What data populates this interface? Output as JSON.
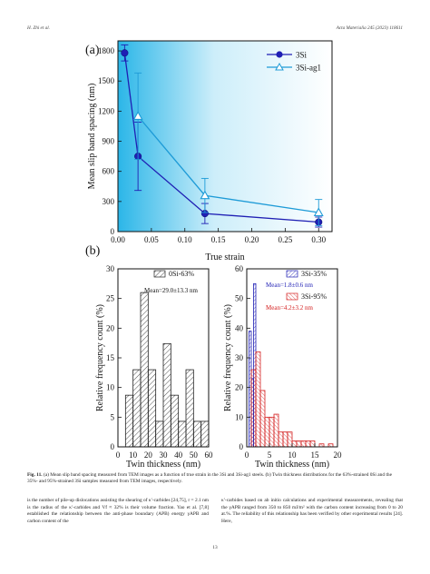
{
  "header": {
    "left": "H. Zhi et al.",
    "right": "Acta Materialia 245 (2023) 118611"
  },
  "panel_a": {
    "label": "(a)"
  },
  "panel_b": {
    "label": "(b)"
  },
  "chart_data": [
    {
      "type": "line",
      "xlabel": "True strain",
      "ylabel": "Mean slip band spacing (nm)",
      "xlim": [
        0,
        0.32
      ],
      "ylim": [
        0,
        1900
      ],
      "xticks": [
        "0.00",
        "0.05",
        "0.10",
        "0.15",
        "0.20",
        "0.25",
        "0.30"
      ],
      "yticks": [
        "0",
        "300",
        "600",
        "900",
        "1200",
        "1500",
        "1800"
      ],
      "legend_position": "top-right",
      "series": [
        {
          "name": "3Si",
          "color": "#1f1fb4",
          "marker": "circle-filled",
          "x": [
            0.01,
            0.03,
            0.13,
            0.3
          ],
          "y": [
            1780,
            750,
            180,
            95
          ],
          "err": [
            80,
            340,
            100,
            50
          ]
        },
        {
          "name": "3Si-ag1",
          "color": "#1e9bd7",
          "marker": "triangle-open",
          "x": [
            0.03,
            0.13,
            0.3
          ],
          "y": [
            1150,
            360,
            190
          ],
          "err": [
            430,
            170,
            130
          ]
        }
      ]
    },
    {
      "type": "bar",
      "xlabel": "Twin thickness (nm)",
      "ylabel": "Relative frequency count (%)",
      "xlim": [
        0,
        60
      ],
      "ylim": [
        0,
        30
      ],
      "xticks": [
        "0",
        "10",
        "20",
        "30",
        "40",
        "50",
        "60"
      ],
      "yticks": [
        "0",
        "5",
        "10",
        "15",
        "20",
        "25",
        "30"
      ],
      "series": [
        {
          "name": "0Si-63%",
          "color": "#222222",
          "bin_edges": [
            5,
            10,
            15,
            20,
            25,
            30,
            35,
            40,
            45,
            50,
            55,
            60
          ],
          "values": [
            8.7,
            13.0,
            26.0,
            13.0,
            4.3,
            17.4,
            8.7,
            4.3,
            13.0,
            4.3,
            4.3
          ]
        }
      ],
      "annotation": "Mean=29.0±13.3 nm"
    },
    {
      "type": "bar",
      "xlabel": "Twin thickness (nm)",
      "ylabel": "Relative frequency count (%)",
      "xlim": [
        0,
        20
      ],
      "ylim": [
        0,
        60
      ],
      "xticks": [
        "0",
        "5",
        "10",
        "15",
        "20"
      ],
      "yticks": [
        "0",
        "10",
        "20",
        "30",
        "40",
        "50",
        "60"
      ],
      "series": [
        {
          "name": "3Si-35%",
          "color": "#1f1fb4",
          "bin_edges": [
            0,
            0.5,
            1,
            1.5,
            2,
            2.5,
            3
          ],
          "values": [
            0,
            39,
            23,
            55,
            0,
            0
          ]
        },
        {
          "name": "3Si-95%",
          "color": "#d42020",
          "bin_edges": [
            1,
            2,
            3,
            4,
            5,
            6,
            7,
            8,
            9,
            10,
            11,
            12,
            13,
            14,
            15,
            16,
            17,
            18,
            19
          ],
          "values": [
            26,
            32,
            19,
            10,
            10,
            11,
            5,
            5,
            5,
            2,
            2,
            2,
            2,
            2,
            0,
            1,
            0,
            1
          ]
        }
      ],
      "annotations": [
        "Mean=1.8±0.6 nm",
        "Mean=4.2±3.2 nm"
      ]
    }
  ],
  "caption": {
    "label": "Fig. 11.",
    "text": " (a) Mean slip band spacing measured from TEM images as a function of true strain in the 3Si and 3Si-ag1 steels. (b) Twin thickness distributions for the 63%-strained 0Si and the 35%- and 95%-strained 3Si samples measured from TEM images, respectively."
  },
  "body": {
    "left": "is the number of pile-up dislocations assisting the shearing of κ′-carbides [24,75], r = 2.1 nm is the radius of the κ′-carbides and Vf ≈ 32% is their volume fraction. Yao et al. [7,8] established the relationship between the anti-phase boundary (APB) energy γAPB and carbon content of the",
    "right": "κ′-carbides based on ab initio calculations and experimental measurements, revealing that the γAPB ranged from 350 to 850 mJ/m² with the carbon content increasing from 0 to 20 at.%. The reliability of this relationship has been verified by other experimental results [24]. Here,"
  },
  "page_number": "13"
}
